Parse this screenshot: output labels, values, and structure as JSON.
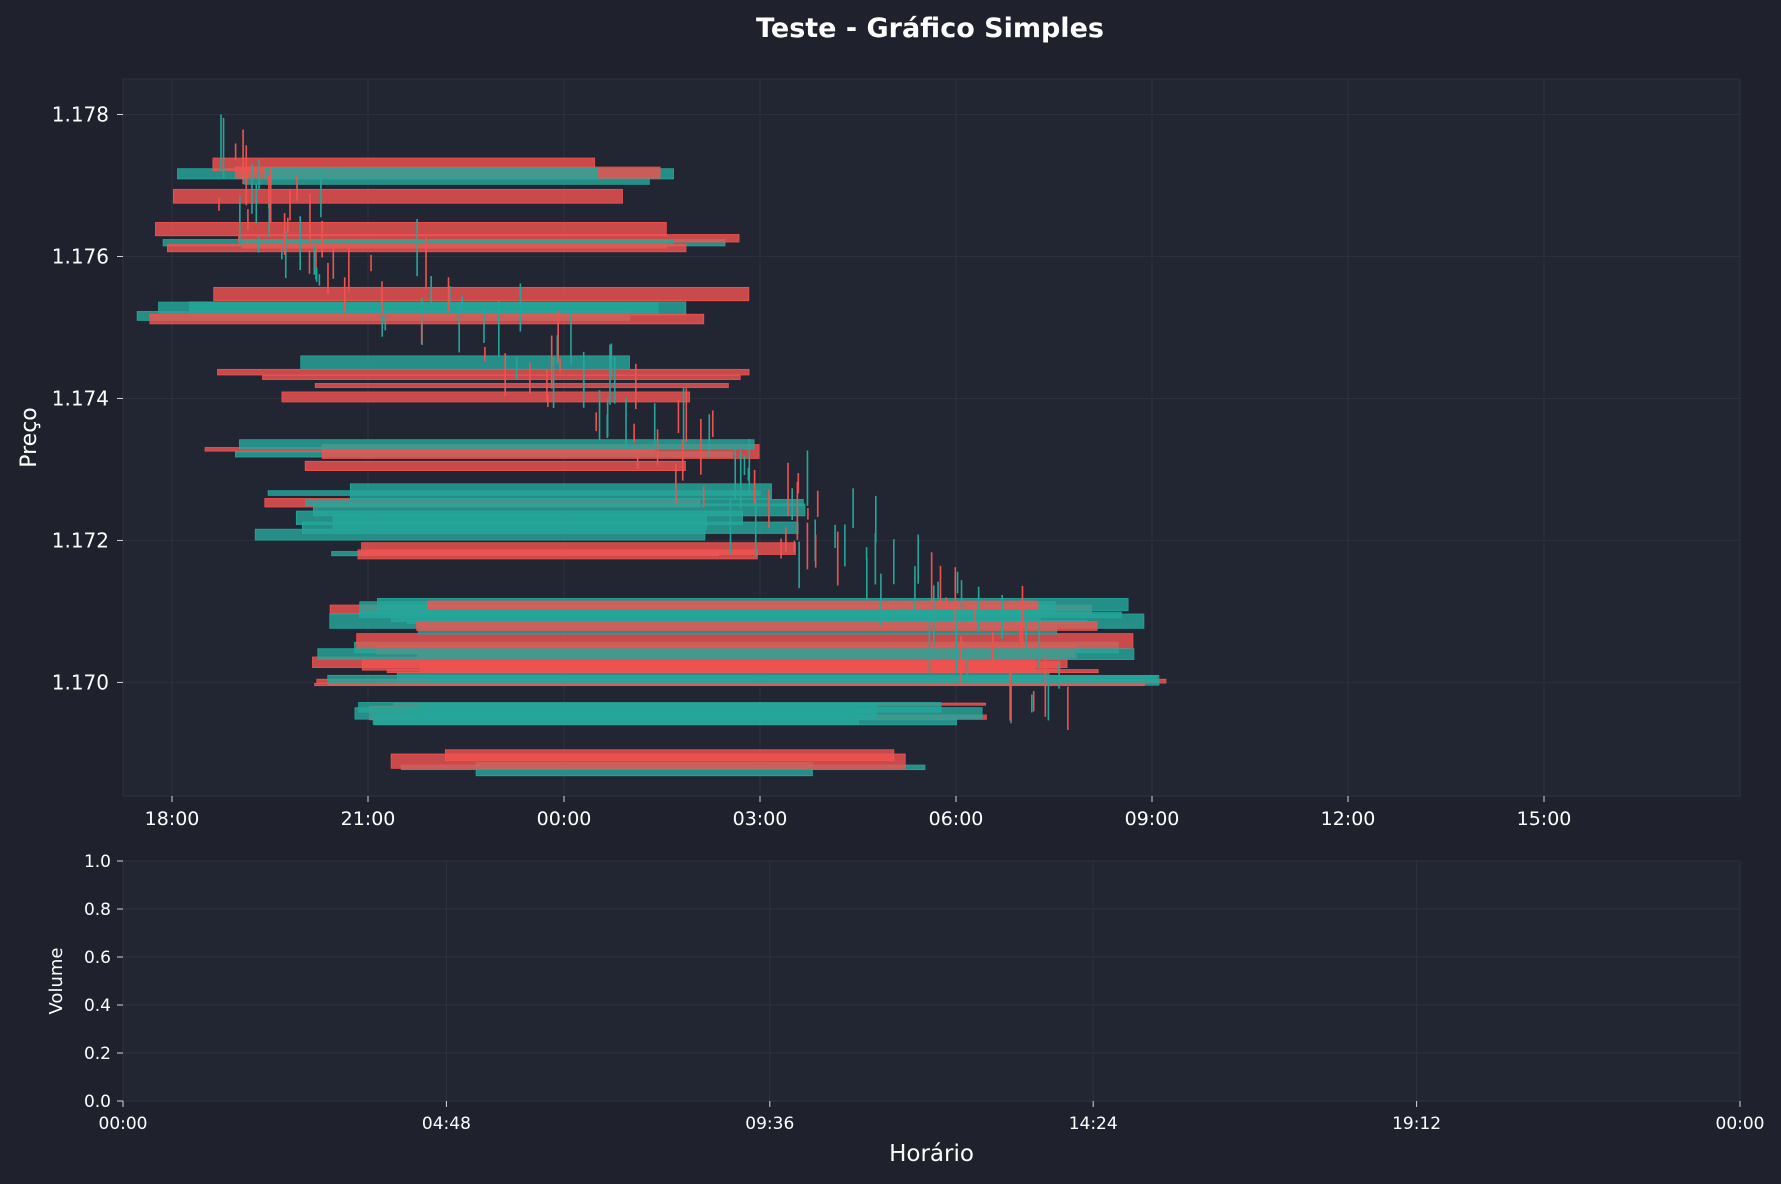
{
  "colors": {
    "background": "#1f222d",
    "panel": "#222632",
    "grid": "#2c313d",
    "axis": "#d8d8d8",
    "text": "#ffffff",
    "up": "#26a69a",
    "down": "#ef5350"
  },
  "chart_data": [
    {
      "type": "candlestick",
      "title": "Teste - Gráfico Simples",
      "ylabel": "Preço",
      "xlabel": "",
      "grid": true,
      "xlim": [
        -0.75,
        24.0
      ],
      "ylim": [
        1.1684,
        1.1785
      ],
      "x_ticks": [
        0,
        3,
        6,
        9,
        12,
        15,
        18,
        21
      ],
      "x_tick_labels": [
        "18:00",
        "21:00",
        "00:00",
        "03:00",
        "06:00",
        "09:00",
        "12:00",
        "15:00"
      ],
      "y_ticks": [
        1.17,
        1.172,
        1.174,
        1.176,
        1.178
      ],
      "y_tick_labels": [
        "1.170",
        "1.172",
        "1.174",
        "1.176",
        "1.178"
      ],
      "note_levels": [
        1.177,
        1.1761,
        1.1752,
        1.1743,
        1.1731,
        1.1722,
        1.1705,
        1.1693
      ]
    },
    {
      "type": "bar",
      "title": "",
      "ylabel": "Volume",
      "xlabel": "Horário",
      "grid": true,
      "ylim": [
        0,
        1.0
      ],
      "y_ticks": [
        0.0,
        0.2,
        0.4,
        0.6,
        0.8,
        1.0
      ],
      "y_tick_labels": [
        "0.0",
        "0.2",
        "0.4",
        "0.6",
        "0.8",
        "1.0"
      ],
      "x_tick_labels": [
        "00:00",
        "04:48",
        "09:36",
        "14:24",
        "19:12",
        "00:00"
      ],
      "values": []
    }
  ]
}
